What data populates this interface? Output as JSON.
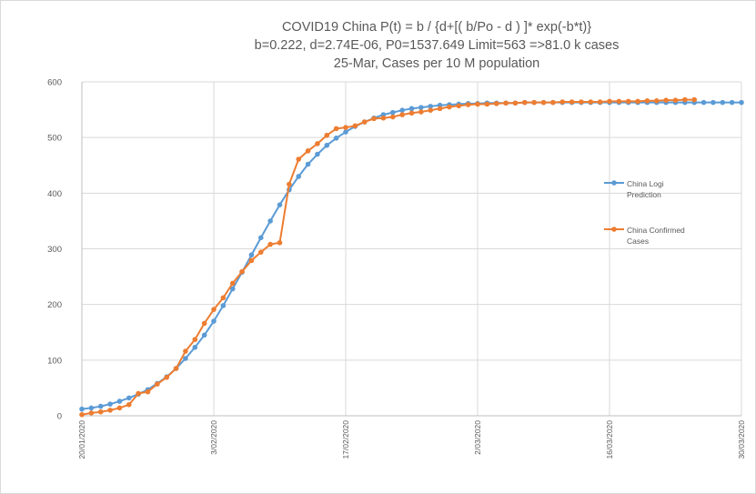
{
  "chart_data": {
    "type": "line",
    "title_lines": [
      "COVID19 China P(t) = b / {d+[( b/Po - d ) ]* exp(-b*t)}",
      "b=0.222, d=2.74E-06, P0=1537.649  Limit=563  =>81.0 k cases",
      "25-Mar, Cases per 10 M population"
    ],
    "xlabel": "",
    "ylabel": "",
    "x_start": "20/01/2020",
    "x_tick_labels": [
      "20/01/2020",
      "3/02/2020",
      "17/02/2020",
      "2/03/2020",
      "16/03/2020",
      "30/03/2020"
    ],
    "xlim_days": [
      0,
      70
    ],
    "y_tick_labels": [
      "0",
      "100",
      "200",
      "300",
      "400",
      "500",
      "600"
    ],
    "ylim": [
      0,
      600
    ],
    "grid": "major both axes",
    "legend_placement": "right",
    "series": [
      {
        "name": "China Logi Prediction",
        "color": "#5b9bd5",
        "start_day": 0,
        "values": [
          12,
          14,
          17,
          21,
          26,
          32,
          39,
          47,
          58,
          70,
          85,
          103,
          123,
          145,
          170,
          198,
          228,
          258,
          289,
          320,
          350,
          379,
          406,
          430,
          452,
          470,
          486,
          499,
          510,
          520,
          528,
          535,
          541,
          545,
          549,
          552,
          554,
          556,
          558,
          559,
          560,
          561,
          561,
          562,
          562,
          562,
          562,
          563,
          563,
          563,
          563,
          563,
          563,
          563,
          563,
          563,
          563,
          563,
          563,
          563,
          563,
          563,
          563,
          563,
          563,
          563,
          563,
          563,
          563,
          563,
          563
        ]
      },
      {
        "name": "China Confirmed Cases",
        "color": "#ed7d31",
        "start_day": 0,
        "values": [
          2,
          5,
          7,
          10,
          14,
          20,
          40,
          43,
          57,
          69,
          85,
          116,
          137,
          166,
          191,
          212,
          238,
          259,
          279,
          294,
          308,
          311,
          416,
          461,
          476,
          489,
          504,
          516,
          518,
          521,
          528,
          534,
          535,
          537,
          541,
          544,
          546,
          549,
          552,
          555,
          557,
          559,
          560,
          560,
          561,
          562,
          562,
          563,
          563,
          563,
          563,
          564,
          564,
          564,
          564,
          564,
          565,
          565,
          565,
          565,
          566,
          566,
          567,
          567,
          568,
          568
        ]
      }
    ]
  }
}
